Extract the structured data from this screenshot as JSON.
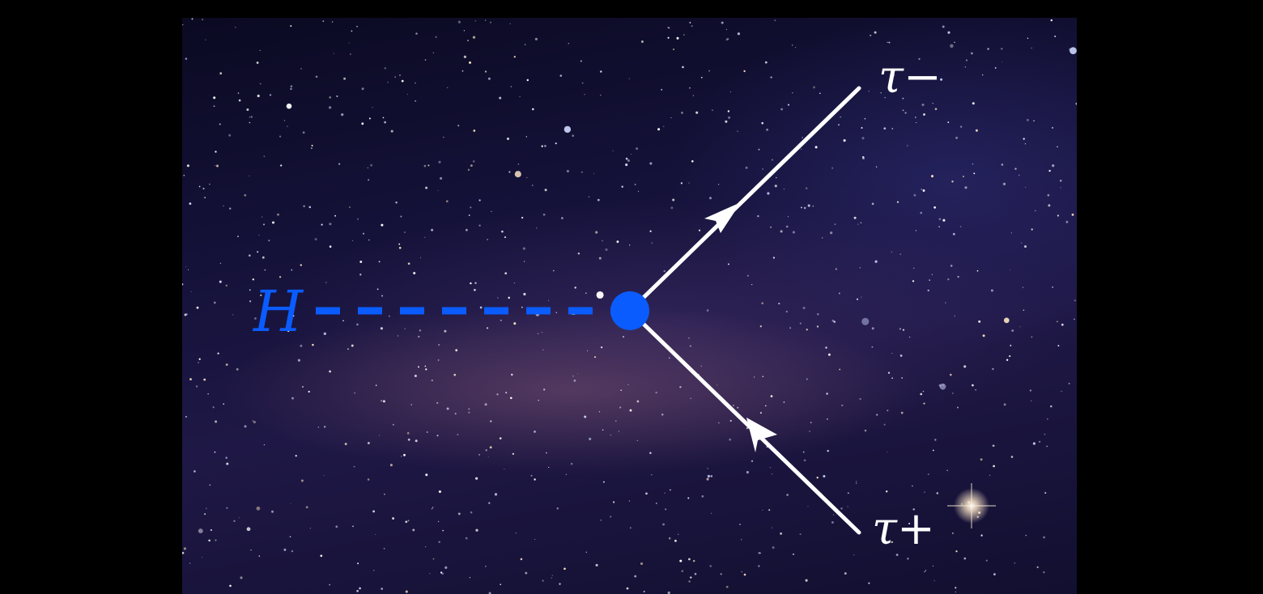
{
  "diagram": {
    "incoming_particle": "H",
    "outgoing_top": "τ−",
    "outgoing_bottom": "τ+"
  },
  "colors": {
    "higgs": "#0a5cff",
    "fermion_line": "#ffffff",
    "label_white": "#ffffff",
    "background": "#000000"
  }
}
